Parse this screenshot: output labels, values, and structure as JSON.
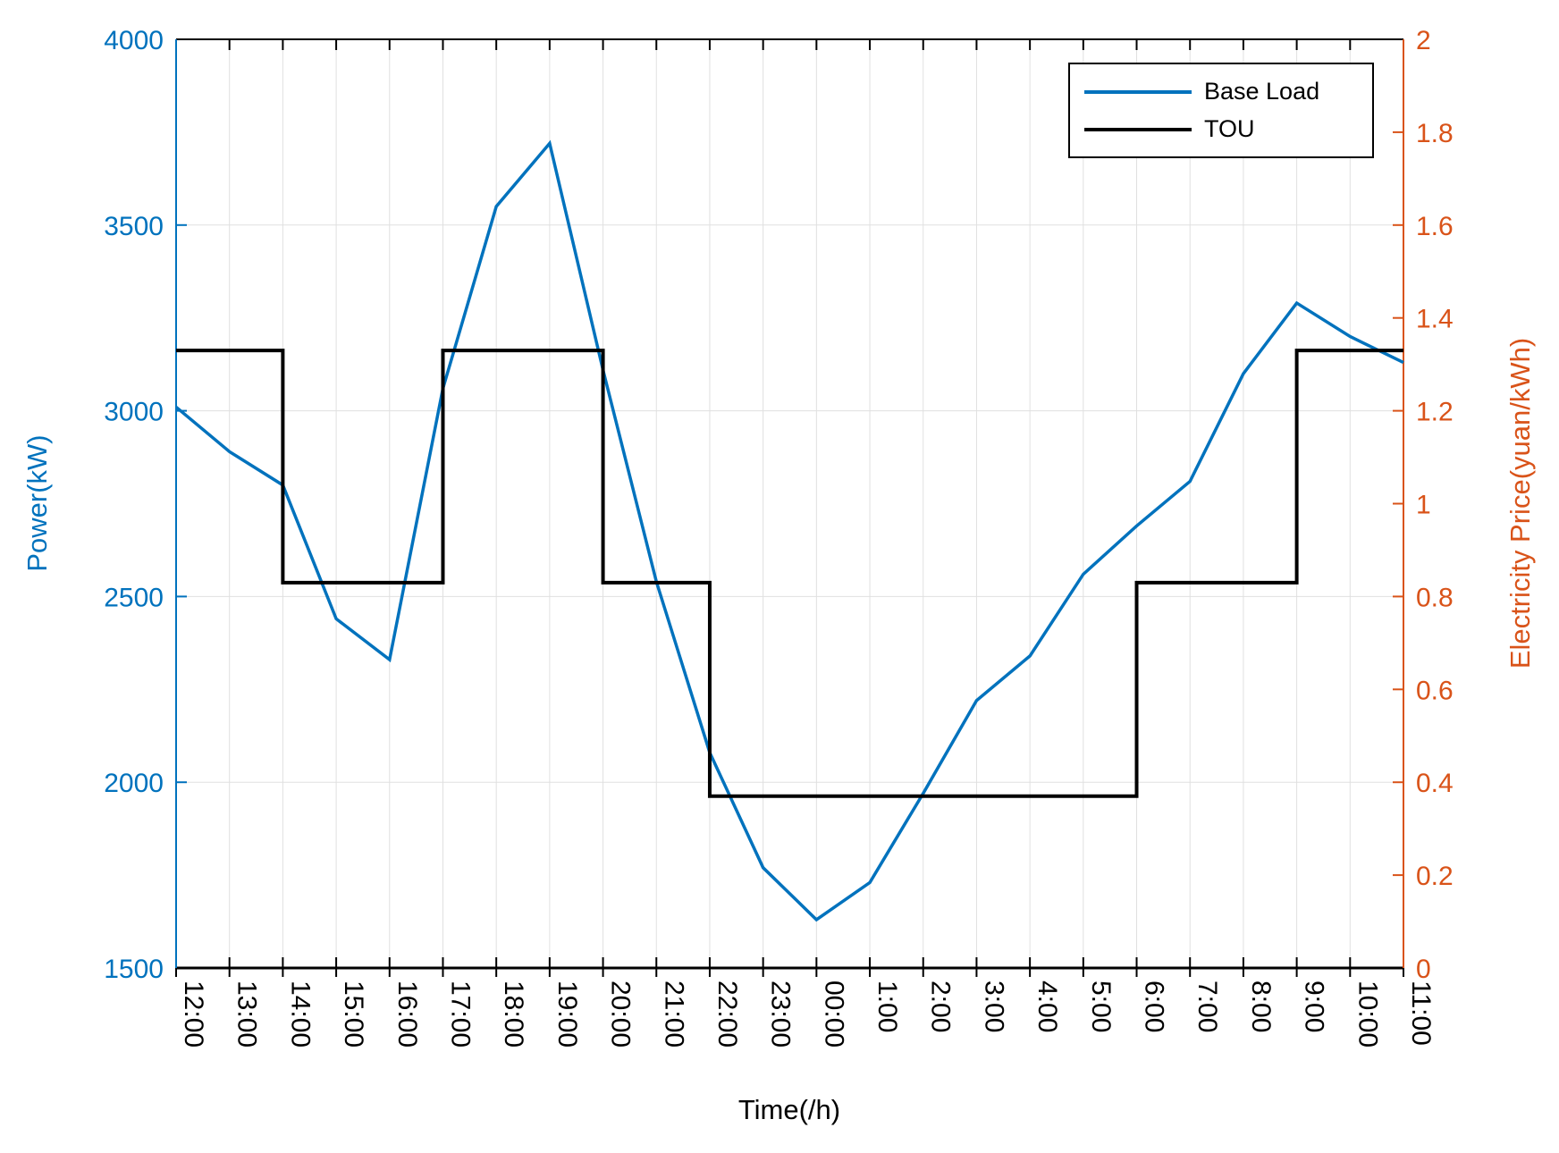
{
  "figure": {
    "x_axis_title": "Time(/h)",
    "y_left_title": "Power(kW)",
    "y_right_title": "Electricity Price(yuan/kWh)",
    "legend": {
      "entries": [
        {
          "label": "Base Load",
          "color": "#0072BD",
          "thickness": 4
        },
        {
          "label": "TOU",
          "color": "#000000",
          "thickness": 4
        }
      ]
    },
    "colors": {
      "left_axis": "#0072BD",
      "right_axis": "#D95319",
      "grid": "#e0e0e0",
      "box": "#000000"
    }
  },
  "chart_data": {
    "type": "line",
    "title": "",
    "xlabel": "Time(/h)",
    "categories": [
      "12:00",
      "13:00",
      "14:00",
      "15:00",
      "16:00",
      "17:00",
      "18:00",
      "19:00",
      "20:00",
      "21:00",
      "22:00",
      "23:00",
      "00:00",
      "1:00",
      "2:00",
      "3:00",
      "4:00",
      "5:00",
      "6:00",
      "7:00",
      "8:00",
      "9:00",
      "10:00",
      "11:00"
    ],
    "series": [
      {
        "name": "Base Load",
        "axis": "left",
        "style": "line",
        "color": "#0072BD",
        "values": [
          3010,
          2890,
          2800,
          2440,
          2330,
          3060,
          3550,
          3720,
          3110,
          2540,
          2080,
          1770,
          1630,
          1730,
          1970,
          2220,
          2340,
          2560,
          2690,
          2810,
          3100,
          3290,
          3200,
          3130
        ]
      },
      {
        "name": "TOU",
        "axis": "right",
        "style": "step",
        "color": "#000000",
        "values": [
          1.33,
          1.33,
          0.83,
          0.83,
          0.83,
          1.33,
          1.33,
          1.33,
          0.83,
          0.83,
          0.37,
          0.37,
          0.37,
          0.37,
          0.37,
          0.37,
          0.37,
          0.37,
          0.83,
          0.83,
          0.83,
          1.33,
          1.33,
          1.33
        ]
      }
    ],
    "left_axis": {
      "label": "Power(kW)",
      "min": 1500,
      "max": 4000,
      "tick_values": [
        1500,
        2000,
        2500,
        3000,
        3500,
        4000
      ],
      "tick_labels": [
        "1500",
        "2000",
        "2500",
        "3000",
        "3500",
        "4000"
      ],
      "color": "#0072BD"
    },
    "right_axis": {
      "label": "Electricity Price(yuan/kWh)",
      "min": 0,
      "max": 2,
      "tick_values": [
        0,
        0.2,
        0.4,
        0.6,
        0.8,
        1,
        1.2,
        1.4,
        1.6,
        1.8,
        2
      ],
      "tick_labels": [
        "0",
        "0.2",
        "0.4",
        "0.6",
        "0.8",
        "1",
        "1.2",
        "1.4",
        "1.6",
        "1.8",
        "2"
      ],
      "color": "#D95319"
    },
    "grid": true,
    "grid_horizontal_at": [
      2000,
      2500,
      3000,
      3500
    ],
    "legend_position": "top-right"
  }
}
